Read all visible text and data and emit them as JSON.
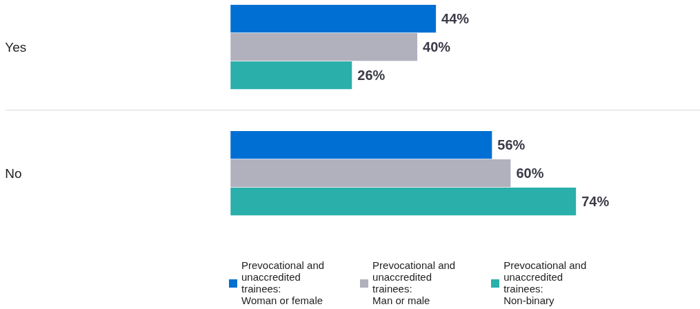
{
  "chart_data": {
    "type": "bar",
    "orientation": "horizontal",
    "categories": [
      "Yes",
      "No"
    ],
    "series": [
      {
        "name": "Prevocational and unaccredited trainees: Woman or female",
        "color": "#006fd3",
        "values": [
          44,
          56
        ],
        "value_labels": [
          "44%",
          "56%"
        ]
      },
      {
        "name": "Prevocational and unaccredited trainees: Man or male",
        "color": "#b1b0bd",
        "values": [
          40,
          60
        ],
        "value_labels": [
          "40%",
          "60%"
        ]
      },
      {
        "name": "Prevocational and unaccredited trainees: Non-binary",
        "color": "#2aafab",
        "values": [
          26,
          74
        ],
        "value_labels": [
          "26%",
          "74%"
        ]
      }
    ],
    "grid": "y",
    "legend": "bottom"
  }
}
